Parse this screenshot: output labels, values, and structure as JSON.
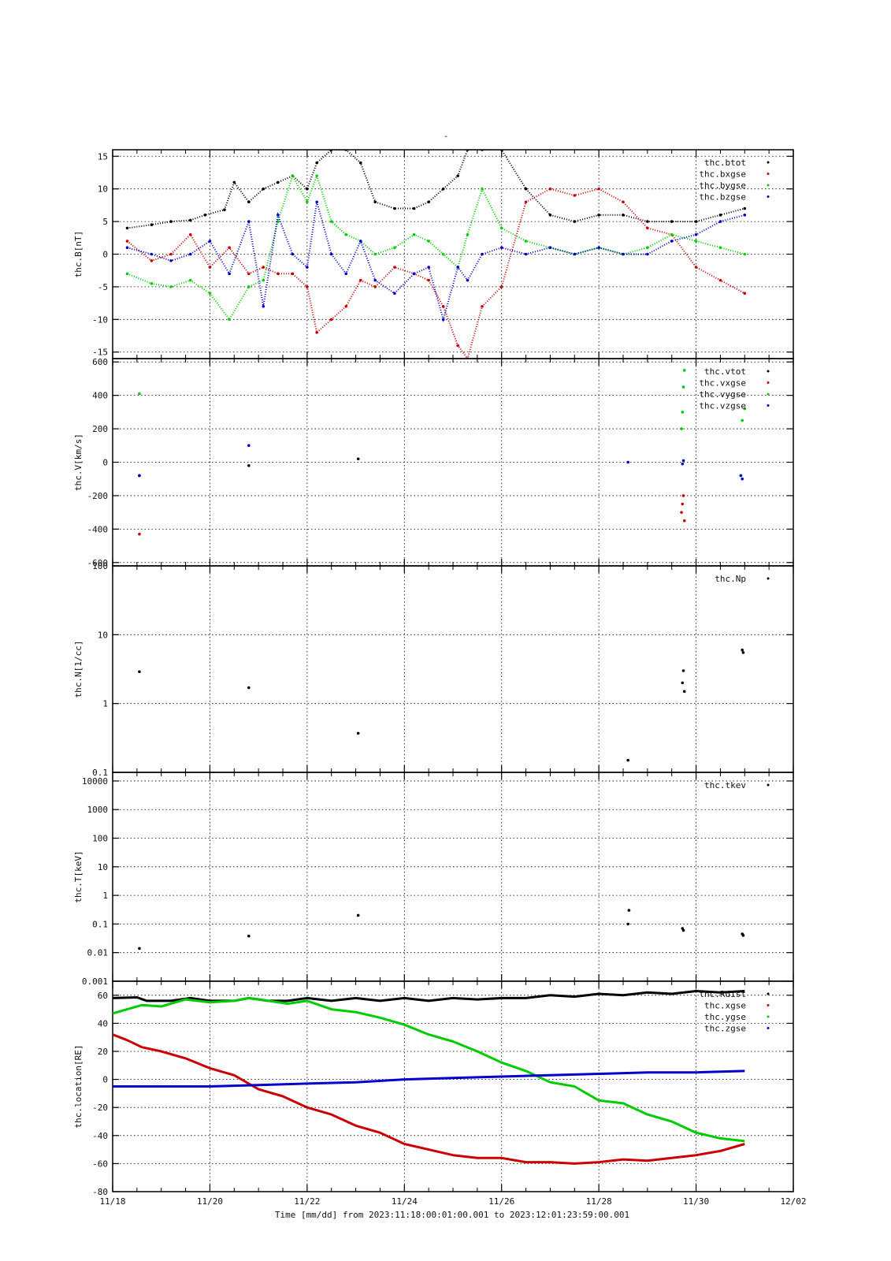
{
  "page": {
    "title": "-"
  },
  "colors": {
    "black": "#000000",
    "red": "#cc0000",
    "green": "#00cc00",
    "blue": "#0000cc",
    "grid": "#000000"
  },
  "x_axis": {
    "tick_labels": [
      "11/18",
      "11/20",
      "11/22",
      "11/24",
      "11/26",
      "11/28",
      "11/30",
      "12/02"
    ],
    "tick_days": [
      0,
      2,
      4,
      6,
      8,
      10,
      12,
      14
    ],
    "label": "Time [mm/dd]  from 2023:11:18:00:01:00.001  to  2023:12:01:23:59:00.001",
    "range_days": [
      0,
      14
    ]
  },
  "chart_data": [
    {
      "id": "B",
      "type": "scatter",
      "ylabel": "thc.B[nT]",
      "yscale": "linear",
      "ylim": [
        -16,
        16
      ],
      "yticks": [
        -15,
        -10,
        -5,
        0,
        5,
        10,
        15
      ],
      "ytick_labels": [
        "-15",
        "-10",
        "-5",
        "0",
        "5",
        "10",
        "15"
      ],
      "xgrid_days": [
        2,
        4,
        6,
        8,
        10,
        12
      ],
      "series": [
        {
          "name": "thc.btot",
          "color": "#000000",
          "x": [
            0.3,
            0.8,
            1.2,
            1.6,
            1.9,
            2.3,
            2.5,
            2.8,
            3.1,
            3.4,
            3.7,
            4.0,
            4.2,
            4.5,
            4.8,
            5.1,
            5.4,
            5.8,
            6.2,
            6.5,
            6.8,
            7.1,
            7.3,
            7.6,
            8.0,
            8.5,
            9.0,
            9.5,
            10.0,
            10.5,
            11.0,
            11.5,
            12.0,
            12.5,
            13.0
          ],
          "y": [
            4,
            4.5,
            5,
            5.2,
            6,
            6.8,
            11,
            8,
            10,
            11,
            12,
            10,
            14,
            16,
            16,
            14,
            8,
            7,
            7,
            8,
            10,
            12,
            16,
            16,
            16,
            10,
            6,
            5,
            6,
            6,
            5,
            5,
            5,
            6,
            7
          ]
        },
        {
          "name": "thc.bxgse",
          "color": "#cc0000",
          "x": [
            0.3,
            0.8,
            1.2,
            1.6,
            2.0,
            2.4,
            2.8,
            3.1,
            3.4,
            3.7,
            4.0,
            4.2,
            4.5,
            4.8,
            5.1,
            5.4,
            5.8,
            6.2,
            6.5,
            6.8,
            7.1,
            7.3,
            7.6,
            8.0,
            8.5,
            9.0,
            9.5,
            10.0,
            10.5,
            11.0,
            11.5,
            12.0,
            12.5,
            13.0
          ],
          "y": [
            2,
            -1,
            0,
            3,
            -2,
            1,
            -3,
            -2,
            -3,
            -3,
            -5,
            -12,
            -10,
            -8,
            -4,
            -5,
            -2,
            -3,
            -4,
            -8,
            -14,
            -16,
            -8,
            -5,
            8,
            10,
            9,
            10,
            8,
            4,
            3,
            -2,
            -4,
            -6
          ]
        },
        {
          "name": "thc.bygse",
          "color": "#00cc00",
          "x": [
            0.3,
            0.8,
            1.2,
            1.6,
            2.0,
            2.4,
            2.8,
            3.1,
            3.4,
            3.7,
            4.0,
            4.2,
            4.5,
            4.8,
            5.1,
            5.4,
            5.8,
            6.2,
            6.5,
            6.8,
            7.1,
            7.3,
            7.6,
            8.0,
            8.5,
            9.0,
            9.5,
            10.0,
            10.5,
            11.0,
            11.5,
            12.0,
            12.5,
            13.0
          ],
          "y": [
            -3,
            -4.5,
            -5,
            -4,
            -6,
            -10,
            -5,
            -4,
            5,
            12,
            8,
            12,
            5,
            3,
            2,
            0,
            1,
            3,
            2,
            0,
            -2,
            3,
            10,
            4,
            2,
            1,
            0,
            1,
            0,
            1,
            3,
            2,
            1,
            0
          ]
        },
        {
          "name": "thc.bzgse",
          "color": "#0000cc",
          "x": [
            0.3,
            0.8,
            1.2,
            1.6,
            2.0,
            2.4,
            2.8,
            3.1,
            3.4,
            3.7,
            4.0,
            4.2,
            4.5,
            4.8,
            5.1,
            5.4,
            5.8,
            6.2,
            6.5,
            6.8,
            7.1,
            7.3,
            7.6,
            8.0,
            8.5,
            9.0,
            9.5,
            10.0,
            10.5,
            11.0,
            11.5,
            12.0,
            12.5,
            13.0
          ],
          "y": [
            1,
            0,
            -1,
            0,
            2,
            -3,
            5,
            -8,
            6,
            0,
            -2,
            8,
            0,
            -3,
            2,
            -4,
            -6,
            -3,
            -2,
            -10,
            -2,
            -4,
            0,
            1,
            0,
            1,
            0,
            1,
            0,
            0,
            2,
            3,
            5,
            6
          ]
        }
      ],
      "legend": [
        "thc.btot",
        "thc.bxgse",
        "thc.bygse",
        "thc.bzgse"
      ]
    },
    {
      "id": "V",
      "type": "scatter",
      "ylabel": "thc.V[km/s]",
      "yscale": "linear",
      "ylim": [
        -620,
        620
      ],
      "yticks": [
        -600,
        -400,
        -200,
        0,
        200,
        400,
        600
      ],
      "ytick_labels": [
        "-600",
        "-400",
        "-200",
        "0",
        "200",
        "400",
        "600"
      ],
      "series": [
        {
          "name": "thc.vtot",
          "color": "#000000",
          "x": [
            0.55,
            2.8,
            5.05
          ],
          "y": [
            -80,
            -20,
            20
          ]
        },
        {
          "name": "thc.vxgse",
          "color": "#cc0000",
          "x": [
            0.55,
            11.7,
            11.72,
            11.74,
            11.76
          ],
          "y": [
            -430,
            -300,
            -250,
            -200,
            -350
          ]
        },
        {
          "name": "thc.vygse",
          "color": "#00cc00",
          "x": [
            0.55,
            11.7,
            11.72,
            11.74,
            11.76,
            13.0,
            12.95
          ],
          "y": [
            410,
            200,
            300,
            450,
            550,
            320,
            250
          ]
        },
        {
          "name": "thc.vzgse",
          "color": "#0000cc",
          "x": [
            0.55,
            2.8,
            10.6,
            11.72,
            11.74,
            12.92,
            12.95
          ],
          "y": [
            -80,
            100,
            0,
            -10,
            10,
            -80,
            -100
          ]
        }
      ],
      "legend": [
        "thc.vtot",
        "thc.vxgse",
        "thc.vygse",
        "thc.vzgse"
      ]
    },
    {
      "id": "N",
      "type": "scatter",
      "ylabel": "thc.N[1/cc]",
      "yscale": "log",
      "ylim": [
        0.1,
        100
      ],
      "yticks": [
        0.1,
        1,
        10,
        100
      ],
      "ytick_labels": [
        "0.1",
        "1",
        "10",
        "100"
      ],
      "series": [
        {
          "name": "thc.Np",
          "color": "#000000",
          "x": [
            0.55,
            2.8,
            5.05,
            10.6,
            11.72,
            11.74,
            11.76,
            12.95,
            12.97
          ],
          "y": [
            2.9,
            1.7,
            0.37,
            0.15,
            2.0,
            3.0,
            1.5,
            6.0,
            5.5
          ]
        }
      ],
      "legend": [
        "thc.Np"
      ]
    },
    {
      "id": "T",
      "type": "scatter",
      "ylabel": "thc.T[keV]",
      "yscale": "log",
      "ylim": [
        0.001,
        20000
      ],
      "yticks": [
        0.001,
        0.01,
        0.1,
        1,
        10,
        100,
        1000,
        10000
      ],
      "ytick_labels": [
        "0.001",
        "0.01",
        "0.1",
        "1",
        "10",
        "100",
        "1000",
        "10000"
      ],
      "series": [
        {
          "name": "thc.tkev",
          "color": "#000000",
          "x": [
            0.55,
            2.8,
            5.05,
            10.6,
            10.62,
            11.72,
            11.74,
            12.95,
            12.97
          ],
          "y": [
            0.014,
            0.038,
            0.2,
            0.1,
            0.3,
            0.07,
            0.06,
            0.045,
            0.04
          ]
        }
      ],
      "legend": [
        "thc.tkev"
      ]
    },
    {
      "id": "L",
      "type": "line",
      "ylabel": "thc.location[RE]",
      "yscale": "linear",
      "ylim": [
        -80,
        70
      ],
      "yticks": [
        -80,
        -60,
        -40,
        -20,
        0,
        20,
        40,
        60
      ],
      "ytick_labels": [
        "-80",
        "-60",
        "-40",
        "-20",
        "0",
        "20",
        "40",
        "60"
      ],
      "series": [
        {
          "name": "thc.Rdist",
          "color": "#000000",
          "x": [
            0,
            0.5,
            0.7,
            1.2,
            1.6,
            2.0,
            2.5,
            2.8,
            3.2,
            3.6,
            4.0,
            4.5,
            5.0,
            5.5,
            6.0,
            6.5,
            7.0,
            7.5,
            8.0,
            8.5,
            9.0,
            9.5,
            10.0,
            10.5,
            11.0,
            11.5,
            12.0,
            12.5,
            13.0
          ],
          "y": [
            58,
            58.5,
            56,
            56,
            58,
            56,
            56,
            58,
            56,
            56,
            58,
            56,
            58,
            56,
            58,
            56,
            58,
            57,
            58,
            58,
            60,
            59,
            61,
            60,
            62,
            61,
            63,
            62,
            63
          ]
        },
        {
          "name": "thc.xgse",
          "color": "#cc0000",
          "x": [
            0,
            0.3,
            0.6,
            1.0,
            1.5,
            2.0,
            2.5,
            3.0,
            3.5,
            4.0,
            4.5,
            5.0,
            5.5,
            6.0,
            6.5,
            7.0,
            7.5,
            8.0,
            8.5,
            9.0,
            9.5,
            10.0,
            10.5,
            11.0,
            11.5,
            12.0,
            12.5,
            13.0
          ],
          "y": [
            32,
            28,
            23,
            20,
            15,
            8,
            3,
            -7,
            -12,
            -20,
            -25,
            -33,
            -38,
            -46,
            -50,
            -54,
            -56,
            -56,
            -59,
            -59,
            -60,
            -59,
            -57,
            -58,
            -56,
            -54,
            -51,
            -46
          ]
        },
        {
          "name": "thc.ygse",
          "color": "#00cc00",
          "x": [
            0,
            0.3,
            0.6,
            1.0,
            1.5,
            2.0,
            2.5,
            2.8,
            3.2,
            3.6,
            4.0,
            4.5,
            5.0,
            5.5,
            6.0,
            6.5,
            7.0,
            7.5,
            8.0,
            8.5,
            9.0,
            9.5,
            10.0,
            10.5,
            11.0,
            11.5,
            12.0,
            12.5,
            13.0
          ],
          "y": [
            47,
            50,
            53,
            52,
            57,
            55,
            56,
            58,
            56,
            54,
            56,
            50,
            48,
            44,
            39,
            32,
            27,
            20,
            12,
            6,
            -2,
            -5,
            -15,
            -17,
            -25,
            -30,
            -38,
            -42,
            -44
          ]
        },
        {
          "name": "thc.zgse",
          "color": "#0000cc",
          "x": [
            0,
            1,
            2,
            3,
            4,
            5,
            6,
            7,
            8,
            9,
            10,
            11,
            12,
            13
          ],
          "y": [
            -5,
            -5,
            -5,
            -4,
            -3,
            -2,
            0,
            1,
            2,
            3,
            4,
            5,
            5,
            6
          ]
        }
      ],
      "legend": [
        "thc.Rdist",
        "thc.xgse",
        "thc.ygse",
        "thc.zgse"
      ]
    }
  ]
}
